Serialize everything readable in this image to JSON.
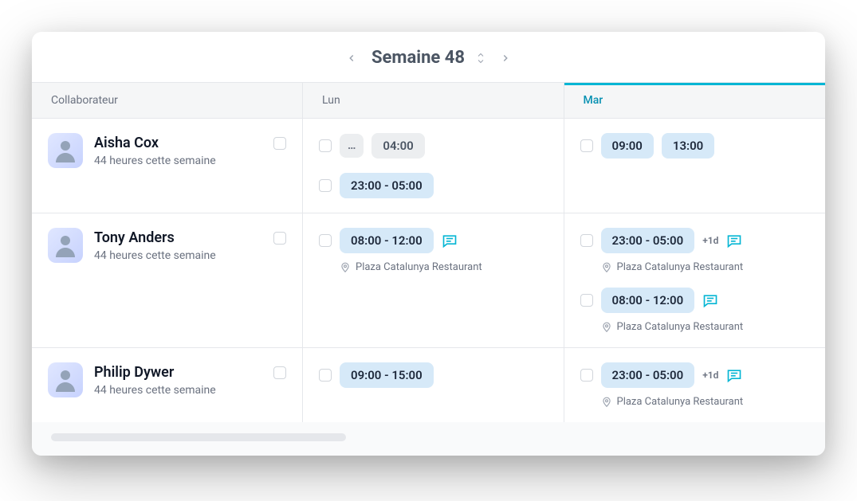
{
  "header": {
    "title": "Semaine 48"
  },
  "columns": {
    "collaborator": "Collaborateur",
    "day1": "Lun",
    "day2": "Mar"
  },
  "rows": [
    {
      "name": "Aisha Cox",
      "subtitle": "44 heures cette semaine",
      "day1": [
        {
          "lead_ellipsis": true,
          "chip1": "04:00",
          "gray": true
        },
        {
          "chip1": "23:00 - 05:00"
        }
      ],
      "day2": [
        {
          "chip1": "09:00",
          "chip2": "13:00"
        }
      ]
    },
    {
      "name": "Tony Anders",
      "subtitle": "44 heures cette semaine",
      "day1": [
        {
          "chip1": "08:00 - 12:00",
          "comment": true,
          "location": "Plaza Catalunya Restaurant"
        }
      ],
      "day2": [
        {
          "chip1": "23:00 - 05:00",
          "extra": "+1d",
          "comment": true,
          "location": "Plaza Catalunya Restaurant"
        },
        {
          "chip1": "08:00 - 12:00",
          "comment": true,
          "location": "Plaza Catalunya Restaurant"
        }
      ]
    },
    {
      "name": "Philip Dywer",
      "subtitle": "44 heures cette semaine",
      "day1": [
        {
          "chip1": "09:00 - 15:00"
        }
      ],
      "day2": [
        {
          "chip1": "23:00 - 05:00",
          "extra": "+1d",
          "comment": true,
          "location": "Plaza Catalunya Restaurant"
        }
      ]
    }
  ],
  "colors": {
    "accent": "#06b6d4",
    "chip_bg": "#d6e9f8",
    "chip_gray_bg": "#eceef0",
    "border": "#e5e7eb",
    "text_primary": "#111827",
    "text_muted": "#6b7280"
  }
}
